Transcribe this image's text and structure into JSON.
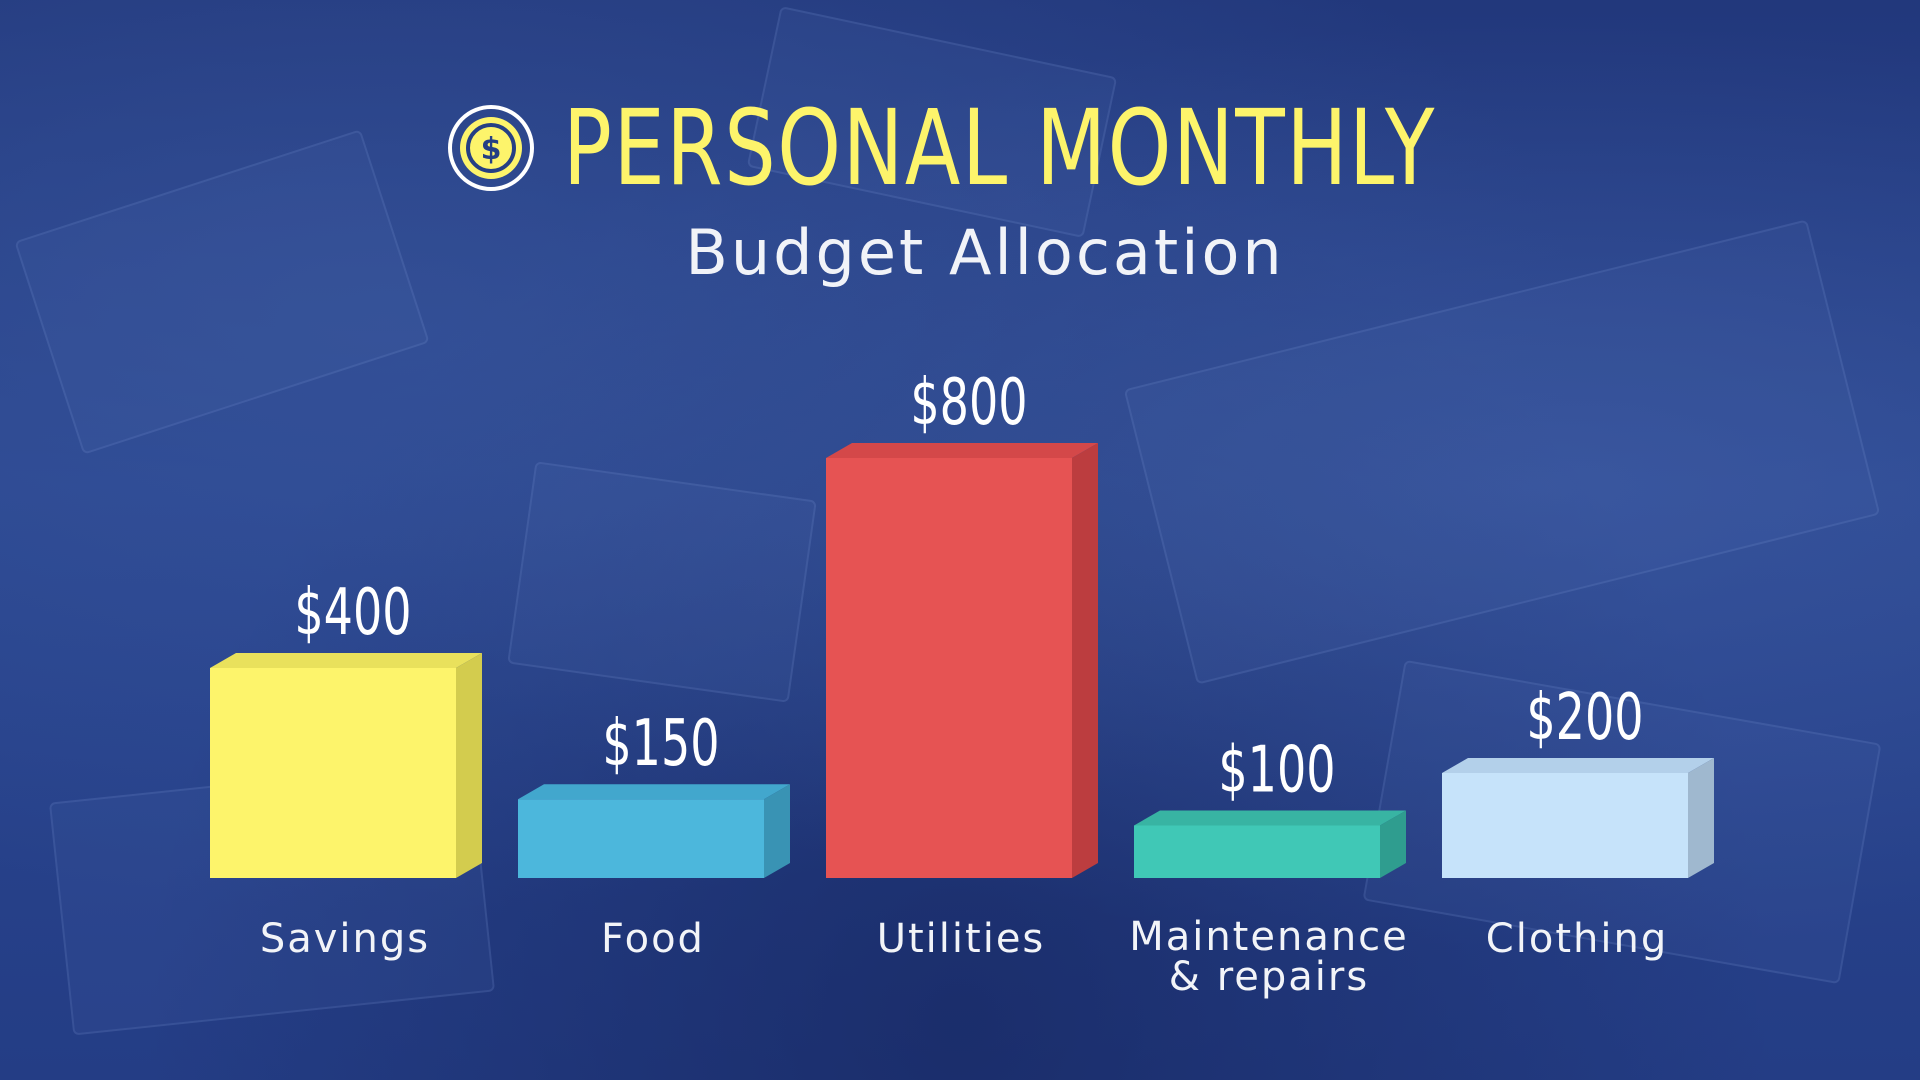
{
  "page": {
    "background_color": "#253f84"
  },
  "header": {
    "title": "PERSONAL MONTHLY",
    "title_color": "#fdf46b",
    "icon": "dollar-coin-icon",
    "subtitle": "Budget Allocation"
  },
  "chart_data": {
    "type": "bar",
    "title": "PERSONAL MONTHLY",
    "subtitle": "Budget Allocation",
    "xlabel": "",
    "ylabel": "",
    "grid": false,
    "legend": "none",
    "categories": [
      "Savings",
      "Food",
      "Utilities",
      "Maintenance\n& repairs",
      "Clothing"
    ],
    "values": [
      400,
      150,
      800,
      100,
      200
    ],
    "value_labels": [
      "$400",
      "$150",
      "$800",
      "$100",
      "$200"
    ],
    "colors": [
      "#fdf46b",
      "#4cb7dc",
      "#e65353",
      "#40c8b6",
      "#c6e3fa"
    ],
    "side_colors": [
      "#d3cc4e",
      "#3993b4",
      "#bc3d3f",
      "#2f9d8f",
      "#9fb8cf"
    ],
    "top_colors": [
      "#e9e15c",
      "#42a7cd",
      "#d44849",
      "#38b4a3",
      "#b3d0ea"
    ]
  }
}
